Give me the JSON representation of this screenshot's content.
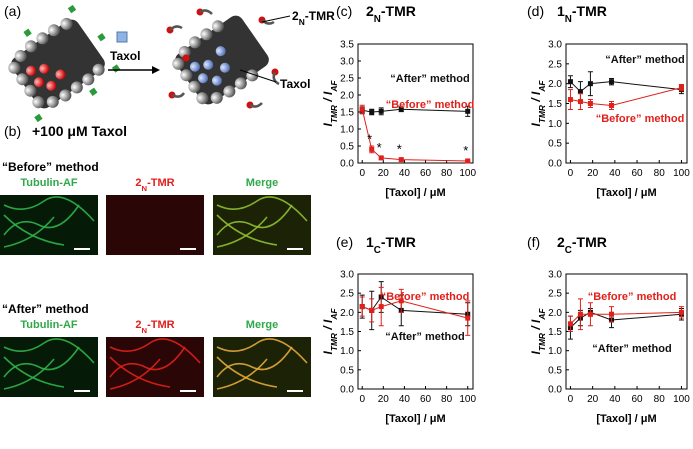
{
  "panel_a": {
    "label": "(a)",
    "arrow_label": "Taxol",
    "callout_probe": [
      "2",
      "N",
      "-TMR"
    ],
    "callout_taxol": "Taxol"
  },
  "panel_b": {
    "label": "(b)",
    "condition": "+100 μM Taxol",
    "rows": [
      {
        "method": "“Before” method",
        "columns": [
          [
            "Tubulin-AF"
          ],
          [
            "2",
            "N",
            "-TMR"
          ],
          [
            "Merge"
          ]
        ]
      },
      {
        "method": "“After” method",
        "columns": [
          [
            "Tubulin-AF"
          ],
          [
            "2",
            "N",
            "-TMR"
          ],
          [
            "Merge"
          ]
        ]
      }
    ]
  },
  "chart_data": [
    {
      "type": "line",
      "label": "(c)",
      "title": [
        "2",
        "N",
        "-TMR"
      ],
      "x_label": "[Taxol] / μM",
      "y_label": [
        "I",
        "TMR",
        " / I",
        "AF"
      ],
      "x": [
        0,
        9,
        18,
        37,
        100
      ],
      "xlim": [
        -4,
        105
      ],
      "xticks": [
        0,
        20,
        40,
        60,
        80,
        100
      ],
      "ylim": [
        0,
        3.5
      ],
      "yticks": [
        {
          "value": 0,
          "label": "0.0"
        },
        {
          "value": 0.5,
          "label": "0.5"
        },
        {
          "value": 1,
          "label": "1.0"
        },
        {
          "value": 1.5,
          "label": "1.5"
        },
        {
          "value": 2,
          "label": "2.0"
        },
        {
          "value": 2.5,
          "label": "2.5"
        },
        {
          "value": 3,
          "label": "3.0"
        },
        {
          "value": 3.5,
          "label": "3.5"
        }
      ],
      "series": [
        {
          "name": "“After” method",
          "color": "#111111",
          "values": [
            1.55,
            1.5,
            1.52,
            1.58,
            1.52
          ],
          "errors": [
            0.1,
            0.08,
            0.1,
            0.07,
            0.15
          ]
        },
        {
          "name": "“Before” method",
          "color": "#e0201b",
          "values": [
            1.58,
            0.4,
            0.15,
            0.1,
            0.06
          ],
          "errors": [
            0.12,
            0.1,
            0.04,
            0.03,
            0.02
          ],
          "significance_marks": [
            null,
            "*",
            "*",
            "*",
            "*"
          ]
        }
      ]
    },
    {
      "type": "line",
      "label": "(d)",
      "title": [
        "1",
        "N",
        "-TMR"
      ],
      "x_label": "[Taxol] / μM",
      "y_label": [
        "I",
        "TMR",
        " / I",
        "AF"
      ],
      "x": [
        0,
        9,
        18,
        37,
        100
      ],
      "xlim": [
        -4,
        105
      ],
      "xticks": [
        0,
        20,
        40,
        60,
        80,
        100
      ],
      "ylim": [
        0,
        3
      ],
      "yticks": [
        {
          "value": 0,
          "label": "0.0"
        },
        {
          "value": 0.5,
          "label": "0.5"
        },
        {
          "value": 1,
          "label": "1.0"
        },
        {
          "value": 1.5,
          "label": "1.5"
        },
        {
          "value": 2,
          "label": "2.0"
        },
        {
          "value": 2.5,
          "label": "2.5"
        },
        {
          "value": 3,
          "label": "3.0"
        }
      ],
      "series": [
        {
          "name": "“After” method",
          "color": "#111111",
          "values": [
            2.05,
            1.8,
            2.0,
            2.05,
            1.85
          ],
          "errors": [
            0.15,
            0.25,
            0.3,
            0.08,
            0.1
          ]
        },
        {
          "name": "“Before” method",
          "color": "#e0201b",
          "values": [
            1.6,
            1.55,
            1.5,
            1.45,
            1.9
          ],
          "errors": [
            0.25,
            0.2,
            0.1,
            0.1,
            0.08
          ]
        }
      ]
    },
    {
      "type": "line",
      "label": "(e)",
      "title": [
        "1",
        "C",
        "-TMR"
      ],
      "x_label": "[Taxol] / μM",
      "y_label": [
        "I",
        "TMR",
        " / I",
        "AF"
      ],
      "x": [
        0,
        9,
        18,
        37,
        100
      ],
      "xlim": [
        -4,
        105
      ],
      "xticks": [
        0,
        20,
        40,
        60,
        80,
        100
      ],
      "ylim": [
        0,
        3
      ],
      "yticks": [
        {
          "value": 0,
          "label": "0.0"
        },
        {
          "value": 0.5,
          "label": "0.5"
        },
        {
          "value": 1,
          "label": "1.0"
        },
        {
          "value": 1.5,
          "label": "1.5"
        },
        {
          "value": 2,
          "label": "2.0"
        },
        {
          "value": 2.5,
          "label": "2.5"
        },
        {
          "value": 3,
          "label": "3.0"
        }
      ],
      "series": [
        {
          "name": "“After” method",
          "color": "#111111",
          "values": [
            2.15,
            2.05,
            2.4,
            2.05,
            1.95
          ],
          "errors": [
            0.3,
            0.5,
            0.4,
            0.4,
            0.3
          ]
        },
        {
          "name": "“Before” method",
          "color": "#e0201b",
          "values": [
            2.15,
            2.05,
            2.15,
            2.3,
            1.85
          ],
          "errors": [
            0.25,
            0.3,
            0.5,
            0.3,
            0.45
          ]
        }
      ]
    },
    {
      "type": "line",
      "label": "(f)",
      "title": [
        "2",
        "C",
        "-TMR"
      ],
      "x_label": "[Taxol] / μM",
      "y_label": [
        "I",
        "TMR",
        " / I",
        "AF"
      ],
      "x": [
        0,
        9,
        18,
        37,
        100
      ],
      "xlim": [
        -4,
        105
      ],
      "xticks": [
        0,
        20,
        40,
        60,
        80,
        100
      ],
      "ylim": [
        0,
        3
      ],
      "yticks": [
        {
          "value": 0,
          "label": "0.0"
        },
        {
          "value": 0.5,
          "label": "0.5"
        },
        {
          "value": 1,
          "label": "1.0"
        },
        {
          "value": 1.5,
          "label": "1.5"
        },
        {
          "value": 2,
          "label": "2.0"
        },
        {
          "value": 2.5,
          "label": "2.5"
        },
        {
          "value": 3,
          "label": "3.0"
        }
      ],
      "series": [
        {
          "name": "“After” method",
          "color": "#111111",
          "values": [
            1.6,
            1.85,
            2.0,
            1.8,
            1.95
          ],
          "errors": [
            0.3,
            0.2,
            0.1,
            0.2,
            0.15
          ]
        },
        {
          "name": "“Before” method",
          "color": "#e0201b",
          "values": [
            1.7,
            1.95,
            1.95,
            1.95,
            2.0
          ],
          "errors": [
            0.2,
            0.4,
            0.3,
            0.2,
            0.15
          ]
        }
      ]
    }
  ]
}
